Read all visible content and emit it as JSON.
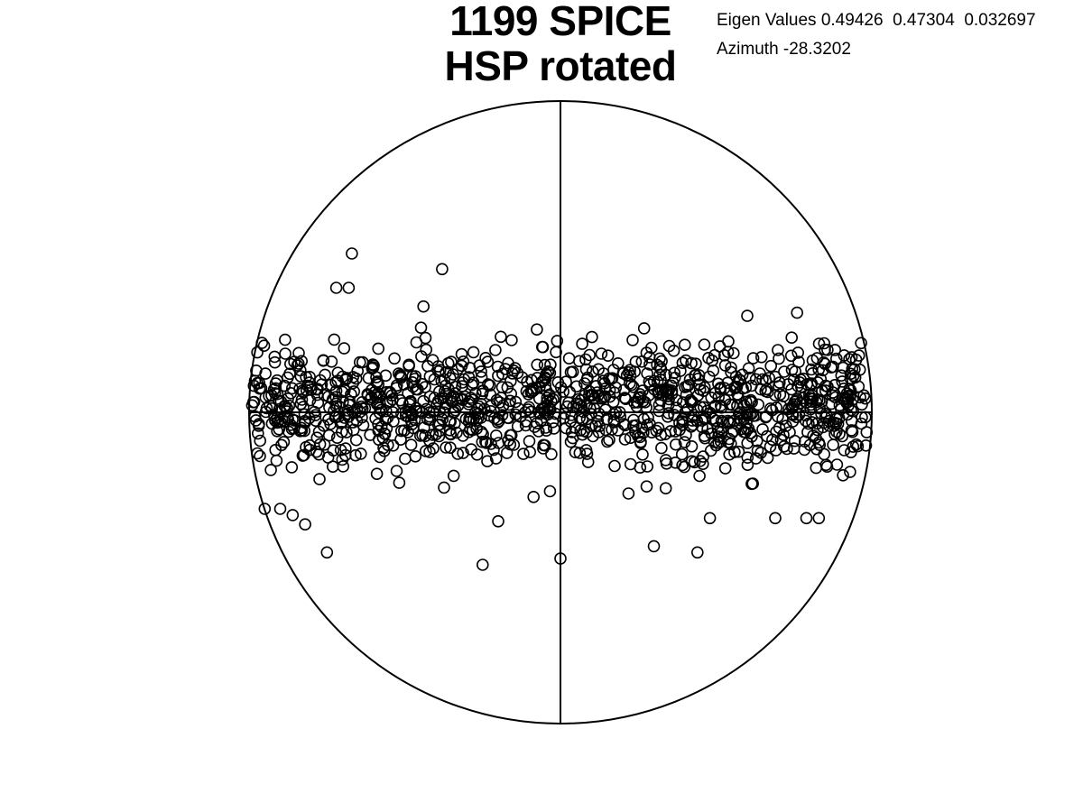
{
  "header": {
    "title_line1": "1199 SPICE",
    "title_line2": "HSP rotated",
    "eigen_label": "Eigen Values 0.49426  0.47304  0.032697",
    "azimuth_label": "Azimuth -28.3202"
  },
  "chart_data": {
    "type": "scatter",
    "title": "1199 SPICE HSP rotated",
    "projection": "stereonet (equal-area, lower hemisphere)",
    "radius": 1.0,
    "eigen_values": [
      0.49426,
      0.47304,
      0.032697
    ],
    "azimuth": -28.3202,
    "point_count": 1199,
    "marker": "open-circle",
    "color": "#000000",
    "grid": false,
    "distribution": {
      "description": "girdle along the horizontal diameter",
      "mean_y": 0.02,
      "spread_y": 0.1,
      "x_range": [
        -1.0,
        1.0
      ]
    },
    "outliers": [
      {
        "x": -0.67,
        "y": 0.51
      },
      {
        "x": -0.38,
        "y": 0.46
      },
      {
        "x": -0.72,
        "y": 0.4
      },
      {
        "x": -0.68,
        "y": 0.4
      },
      {
        "x": -0.44,
        "y": 0.34
      },
      {
        "x": 0.76,
        "y": 0.32
      },
      {
        "x": 0.6,
        "y": 0.31
      },
      {
        "x": -0.75,
        "y": -0.45
      },
      {
        "x": -0.25,
        "y": -0.49
      },
      {
        "x": 0.0,
        "y": -0.47
      },
      {
        "x": 0.3,
        "y": -0.43
      },
      {
        "x": 0.44,
        "y": -0.45
      },
      {
        "x": -0.82,
        "y": -0.36
      },
      {
        "x": -0.2,
        "y": -0.35
      },
      {
        "x": 0.48,
        "y": -0.34
      },
      {
        "x": 0.69,
        "y": -0.34
      },
      {
        "x": 0.83,
        "y": -0.34
      },
      {
        "x": 0.79,
        "y": -0.34
      },
      {
        "x": -0.95,
        "y": -0.31
      },
      {
        "x": -0.9,
        "y": -0.31
      },
      {
        "x": -0.86,
        "y": -0.33
      }
    ]
  }
}
